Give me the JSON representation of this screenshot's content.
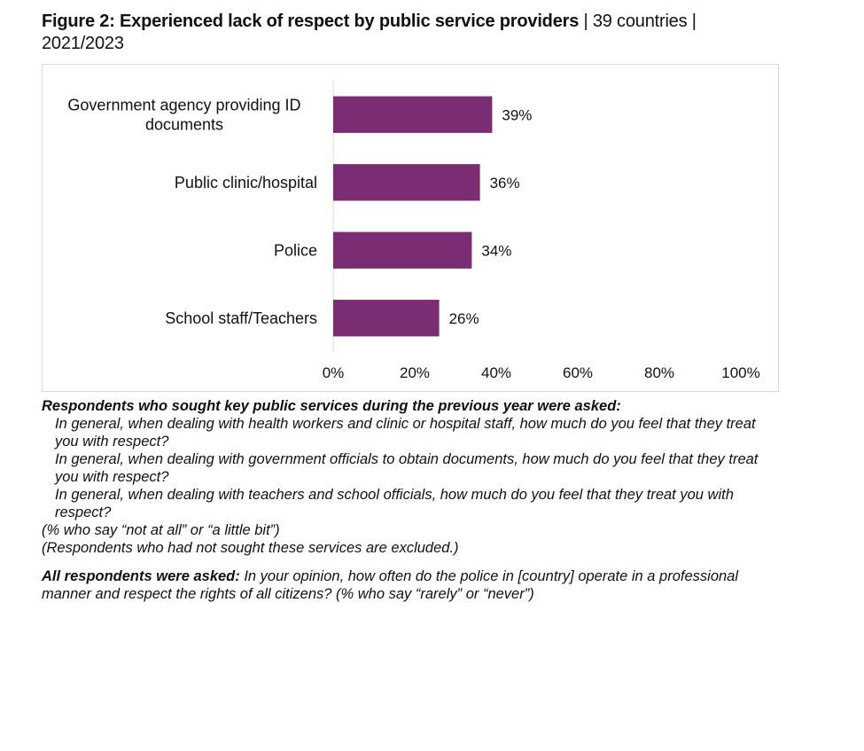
{
  "title": {
    "bold": "Figure 2: Experienced lack of respect by public service providers",
    "rest": " | 39 countries | 2021/2023"
  },
  "chart_data": {
    "type": "bar",
    "orientation": "horizontal",
    "categories": [
      "Government agency providing ID documents",
      "Public clinic/hospital",
      "Police",
      "School staff/Teachers"
    ],
    "category_lines": [
      [
        "Government agency providing ID",
        "documents"
      ],
      [
        "Public clinic/hospital"
      ],
      [
        "Police"
      ],
      [
        "School staff/Teachers"
      ]
    ],
    "values": [
      39,
      36,
      34,
      26
    ],
    "data_labels": [
      "39%",
      "36%",
      "34%",
      "26%"
    ],
    "xlim": [
      0,
      100
    ],
    "xticks": [
      0,
      20,
      40,
      60,
      80,
      100
    ],
    "xtick_labels": [
      "0%",
      "20%",
      "40%",
      "60%",
      "80%",
      "100%"
    ],
    "bar_color": "#7b2d73",
    "axis_color": "#d9d9d9",
    "grid": false,
    "legend": "none"
  },
  "notes": {
    "lead": "Respondents who sought key public services during the previous year were asked:",
    "questions": [
      "In general, when dealing with health workers and clinic or hospital staff, how much do you feel that they treat you with respect?",
      "In general, when dealing with government officials to obtain documents, how much do you feel that they treat you with respect?",
      "In general, when dealing with teachers and school officials, how much do you feel that they treat you with respect?"
    ],
    "pct_note": "(% who say “not at all” or “a little bit”)",
    "excluded_note": "(Respondents who had not sought these services are excluded.)",
    "all_lead": "All respondents were asked:",
    "all_question": " In your opinion, how often do the police in [country] operate in a professional manner and respect the rights of all citizens? (% who say “rarely” or “never”)"
  }
}
